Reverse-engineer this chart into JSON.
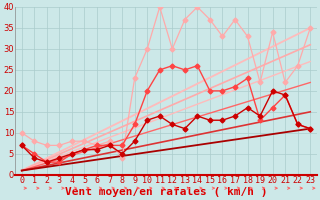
{
  "title": "",
  "xlabel": "Vent moyen/en rafales ( km/h )",
  "ylabel": "",
  "background_color": "#cce8e8",
  "grid_color": "#aacccc",
  "xlim": [
    -0.5,
    23.5
  ],
  "ylim": [
    0,
    40
  ],
  "yticks": [
    0,
    5,
    10,
    15,
    20,
    25,
    30,
    35,
    40
  ],
  "xticks": [
    0,
    1,
    2,
    3,
    4,
    5,
    6,
    7,
    8,
    9,
    10,
    11,
    12,
    13,
    14,
    15,
    16,
    17,
    18,
    19,
    20,
    21,
    22,
    23
  ],
  "lines": [
    {
      "x": [
        0,
        1,
        2,
        3,
        4,
        5,
        6,
        7,
        8,
        9,
        10,
        11,
        12,
        13,
        14,
        15,
        16,
        17,
        18,
        19,
        20,
        21,
        22,
        23
      ],
      "y": [
        10,
        8,
        7,
        7,
        8,
        8,
        7,
        8,
        4,
        23,
        30,
        40,
        30,
        37,
        40,
        37,
        33,
        37,
        33,
        22,
        34,
        22,
        26,
        35
      ],
      "color": "#ffaaaa",
      "linewidth": 0.9,
      "marker": "D",
      "markersize": 2.5,
      "linestyle": "-"
    },
    {
      "x": [
        0,
        1,
        2,
        3,
        4,
        5,
        6,
        7,
        8,
        9,
        10,
        11,
        12,
        13,
        14,
        15,
        16,
        17,
        18,
        19,
        20,
        21,
        22,
        23
      ],
      "y": [
        7,
        5,
        3,
        3,
        5,
        6,
        7,
        7,
        7,
        12,
        20,
        25,
        26,
        25,
        26,
        20,
        20,
        21,
        23,
        13,
        16,
        19,
        12,
        11
      ],
      "color": "#ff4444",
      "linewidth": 1.0,
      "marker": "D",
      "markersize": 2.5,
      "linestyle": "-"
    },
    {
      "x": [
        0,
        1,
        2,
        3,
        4,
        5,
        6,
        7,
        8,
        9,
        10,
        11,
        12,
        13,
        14,
        15,
        16,
        17,
        18,
        19,
        20,
        21,
        22,
        23
      ],
      "y": [
        7,
        4,
        3,
        4,
        5,
        6,
        6,
        7,
        5,
        8,
        13,
        14,
        12,
        11,
        14,
        13,
        13,
        14,
        16,
        14,
        20,
        19,
        12,
        11
      ],
      "color": "#cc0000",
      "linewidth": 1.0,
      "marker": "D",
      "markersize": 2.5,
      "linestyle": "-"
    },
    {
      "x": [
        0,
        23
      ],
      "y": [
        1,
        35
      ],
      "color": "#ffbbbb",
      "linewidth": 1.3,
      "marker": null,
      "markersize": 0,
      "linestyle": "-"
    },
    {
      "x": [
        0,
        23
      ],
      "y": [
        1,
        31
      ],
      "color": "#ffaaaa",
      "linewidth": 1.2,
      "marker": null,
      "markersize": 0,
      "linestyle": "-"
    },
    {
      "x": [
        0,
        23
      ],
      "y": [
        1,
        27
      ],
      "color": "#ffbbbb",
      "linewidth": 1.0,
      "marker": null,
      "markersize": 0,
      "linestyle": "-"
    },
    {
      "x": [
        0,
        23
      ],
      "y": [
        1,
        22
      ],
      "color": "#ff6666",
      "linewidth": 1.0,
      "marker": null,
      "markersize": 0,
      "linestyle": "-"
    },
    {
      "x": [
        0,
        23
      ],
      "y": [
        1,
        15
      ],
      "color": "#dd3333",
      "linewidth": 1.2,
      "marker": null,
      "markersize": 0,
      "linestyle": "-"
    },
    {
      "x": [
        0,
        23
      ],
      "y": [
        1,
        11
      ],
      "color": "#aa0000",
      "linewidth": 1.3,
      "marker": null,
      "markersize": 0,
      "linestyle": "-"
    }
  ],
  "arrow_color": "#ff6666",
  "xlabel_color": "#dd0000",
  "xlabel_fontsize": 8,
  "tick_fontsize": 6,
  "tick_color": "#cc0000"
}
